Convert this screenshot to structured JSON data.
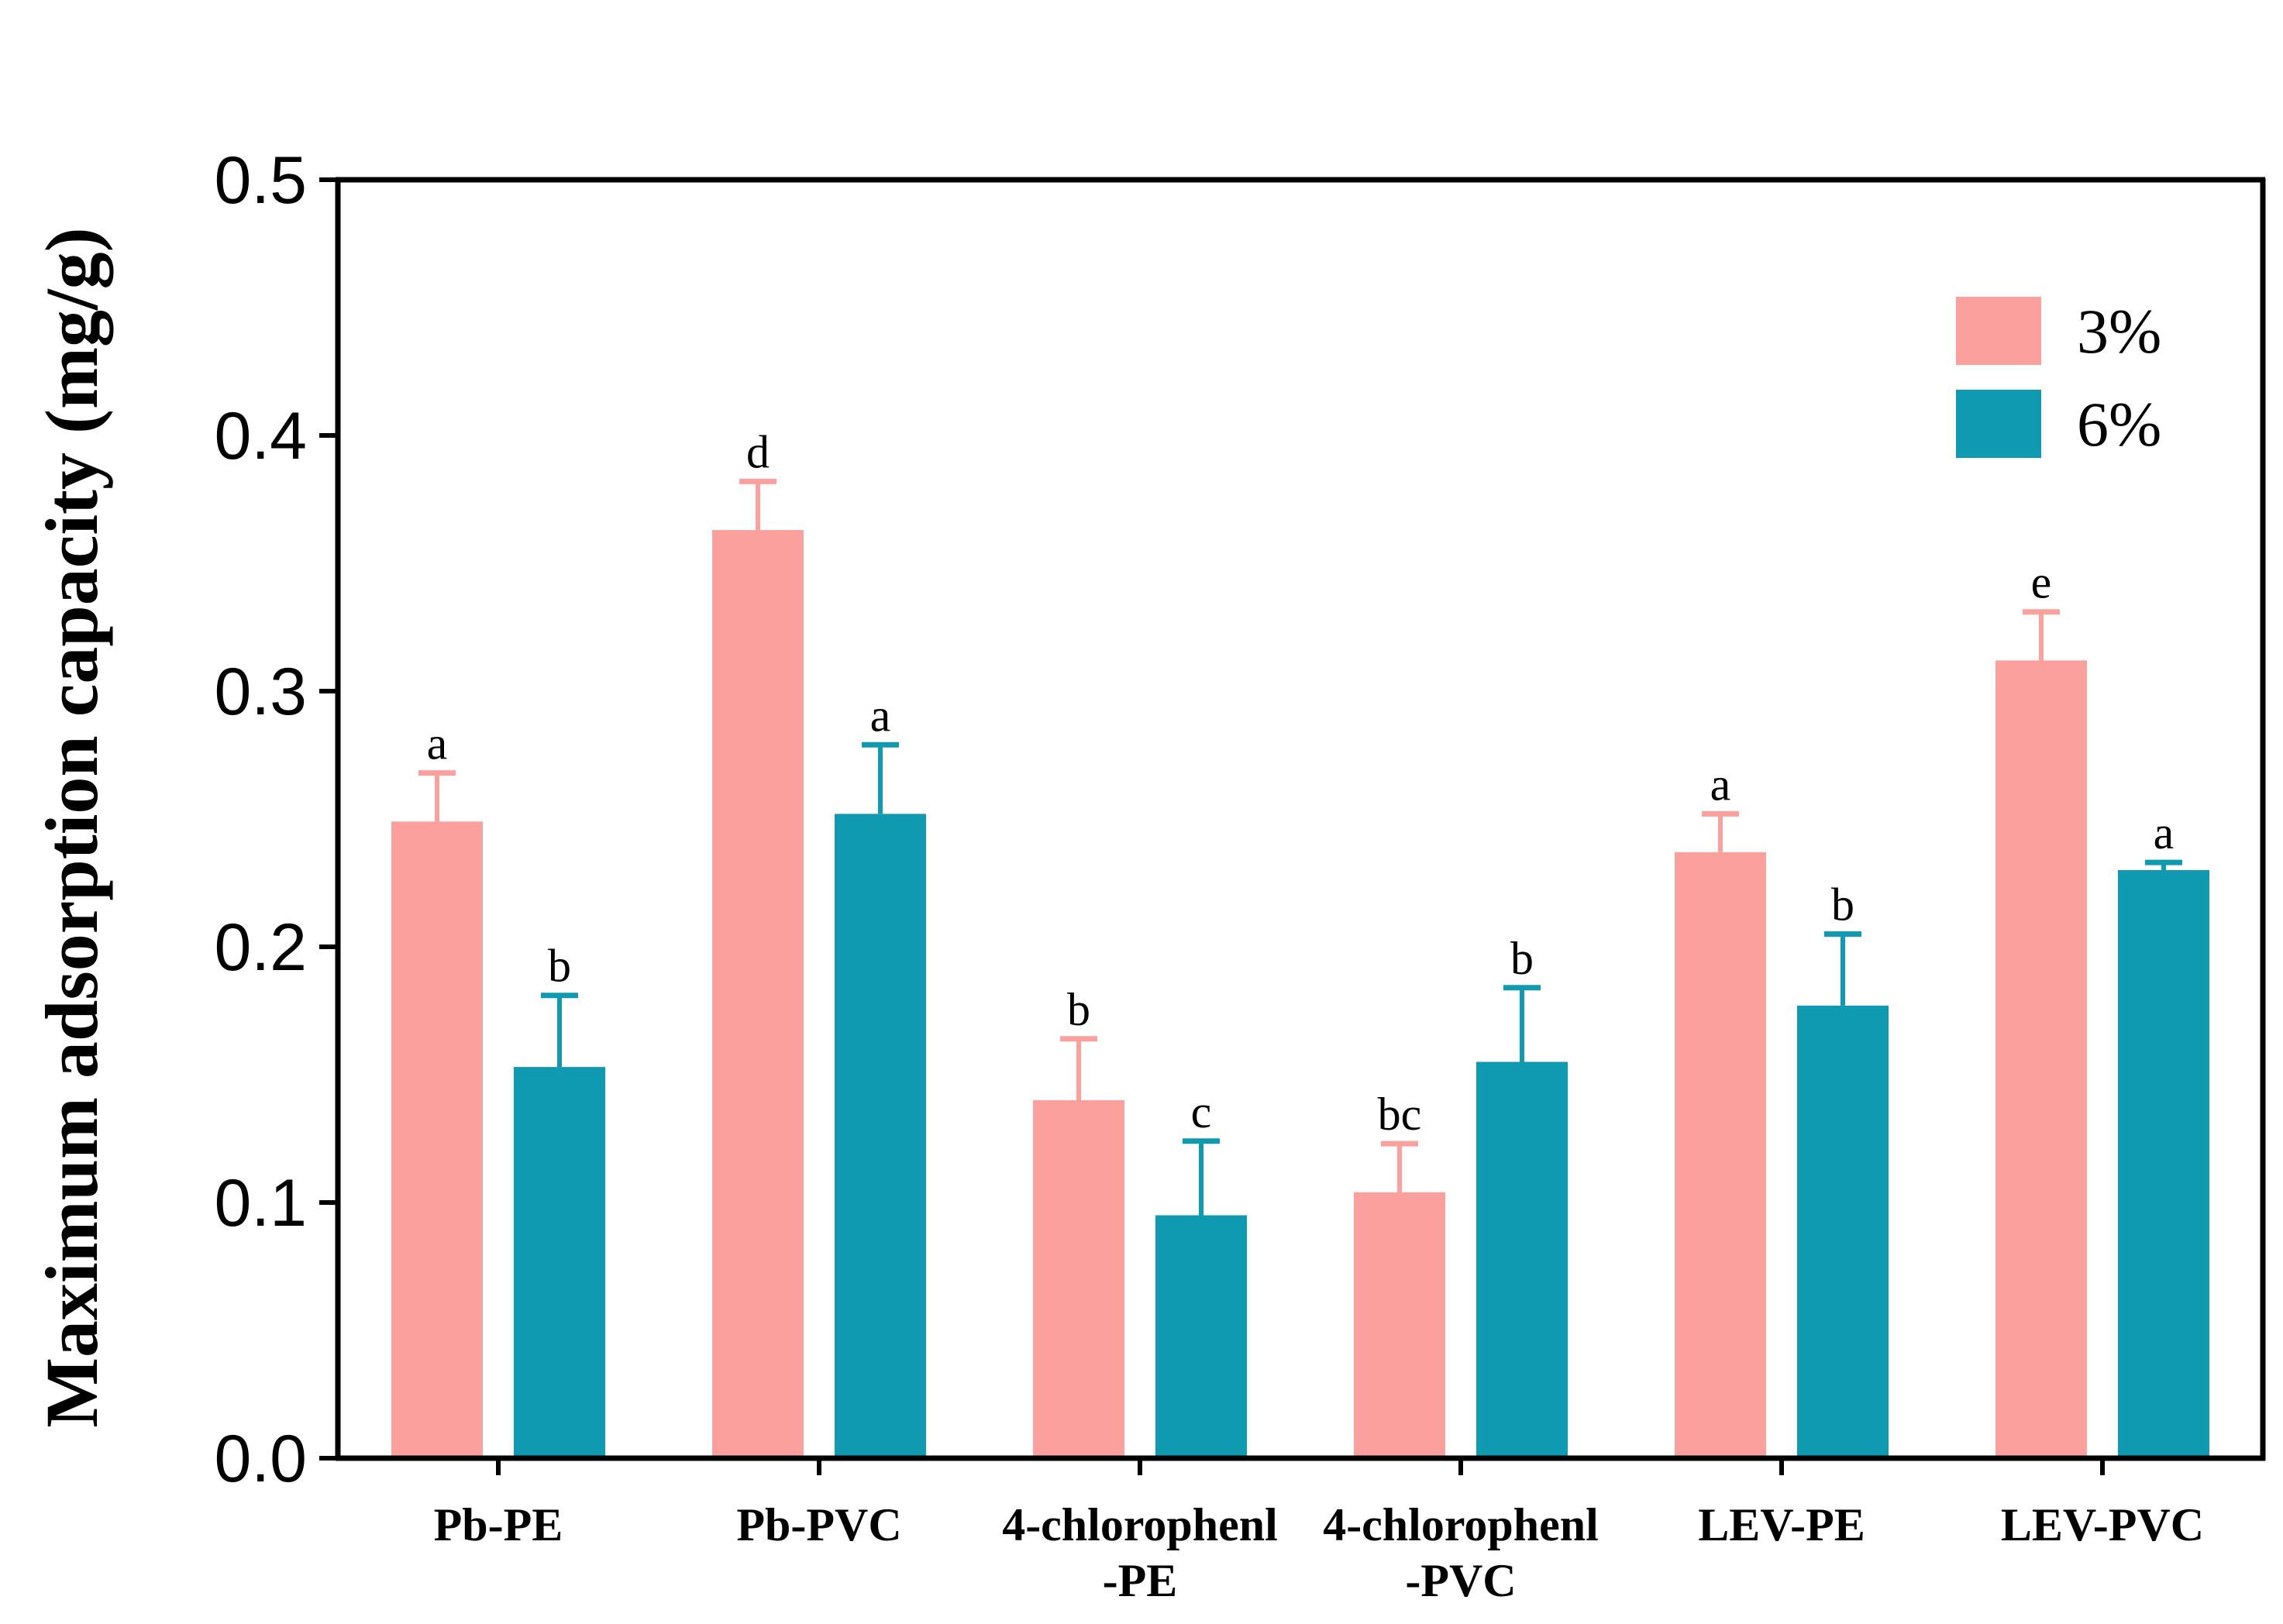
{
  "chart_data": {
    "type": "bar",
    "title": "",
    "xlabel": "",
    "ylabel": "Maximum adsorption capacity (mg/g)",
    "ylim": [
      0,
      0.5
    ],
    "yticks": [
      "0.0",
      "0.1",
      "0.2",
      "0.3",
      "0.4",
      "0.5"
    ],
    "categories": [
      [
        "Pb-PE"
      ],
      [
        "Pb-PVC"
      ],
      [
        "4-chlorophenl",
        "-PE"
      ],
      [
        "4-chlorophenl",
        "-PVC"
      ],
      [
        "LEV-PE"
      ],
      [
        "LEV-PVC"
      ]
    ],
    "series": [
      {
        "name": "3%",
        "color": "#FCA09E",
        "values": [
          0.249,
          0.363,
          0.14,
          0.104,
          0.237,
          0.312
        ],
        "errors": [
          0.019,
          0.019,
          0.024,
          0.019,
          0.015,
          0.019
        ],
        "significance": [
          "a",
          "d",
          "b",
          "bc",
          "a",
          "e"
        ]
      },
      {
        "name": "6%",
        "color": "#0F9AB2",
        "values": [
          0.153,
          0.252,
          0.095,
          0.155,
          0.177,
          0.23
        ],
        "errors": [
          0.028,
          0.027,
          0.029,
          0.029,
          0.028,
          0.003
        ],
        "significance": [
          "b",
          "a",
          "c",
          "b",
          "b",
          "a"
        ]
      }
    ],
    "legend_position": "top-right"
  }
}
